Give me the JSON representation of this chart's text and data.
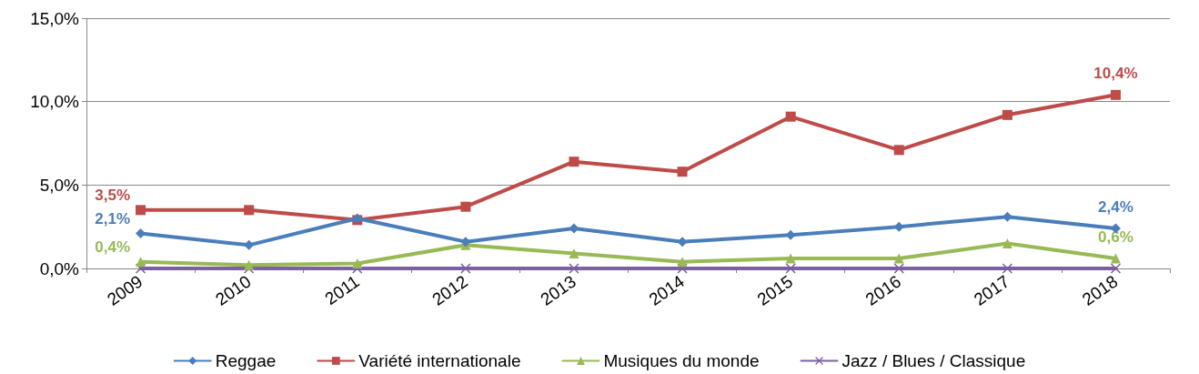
{
  "chart_data": {
    "type": "line",
    "categories": [
      "2009",
      "2010",
      "2011",
      "2012",
      "2013",
      "2014",
      "2015",
      "2016",
      "2017",
      "2018"
    ],
    "series": [
      {
        "name": "Reggae",
        "color": "#4a7ebb",
        "marker": "diamond",
        "values": [
          2.1,
          1.4,
          3.0,
          1.6,
          2.4,
          1.6,
          2.0,
          2.5,
          3.1,
          2.4
        ],
        "value_labels": [
          "2,1%",
          null,
          null,
          null,
          null,
          null,
          null,
          null,
          null,
          "2,4%"
        ]
      },
      {
        "name": "Variété internationale",
        "color": "#be4b48",
        "marker": "square",
        "values": [
          3.5,
          3.5,
          2.9,
          3.7,
          6.4,
          5.8,
          9.1,
          7.1,
          9.2,
          10.4
        ],
        "value_labels": [
          "3,5%",
          null,
          null,
          null,
          null,
          null,
          null,
          null,
          null,
          "10,4%"
        ]
      },
      {
        "name": "Musiques du monde",
        "color": "#98b954",
        "marker": "triangle",
        "values": [
          0.4,
          0.2,
          0.3,
          1.4,
          0.9,
          0.4,
          0.6,
          0.6,
          1.5,
          0.6
        ],
        "value_labels": [
          "0,4%",
          null,
          null,
          null,
          null,
          null,
          null,
          null,
          null,
          "0,6%"
        ]
      },
      {
        "name": "Jazz / Blues / Classique",
        "color": "#7d60a0",
        "marker": "cross",
        "values": [
          0,
          0,
          0,
          0,
          0,
          0,
          0,
          0,
          0,
          0
        ]
      }
    ],
    "ylim": [
      0,
      15
    ],
    "yticks": [
      {
        "value": 0,
        "label": "0,0%"
      },
      {
        "value": 5,
        "label": "5,0%"
      },
      {
        "value": 10,
        "label": "10,0%"
      },
      {
        "value": 15,
        "label": "15,0%"
      }
    ],
    "grid": "y",
    "legend": "bottom",
    "line_style": "solid"
  }
}
